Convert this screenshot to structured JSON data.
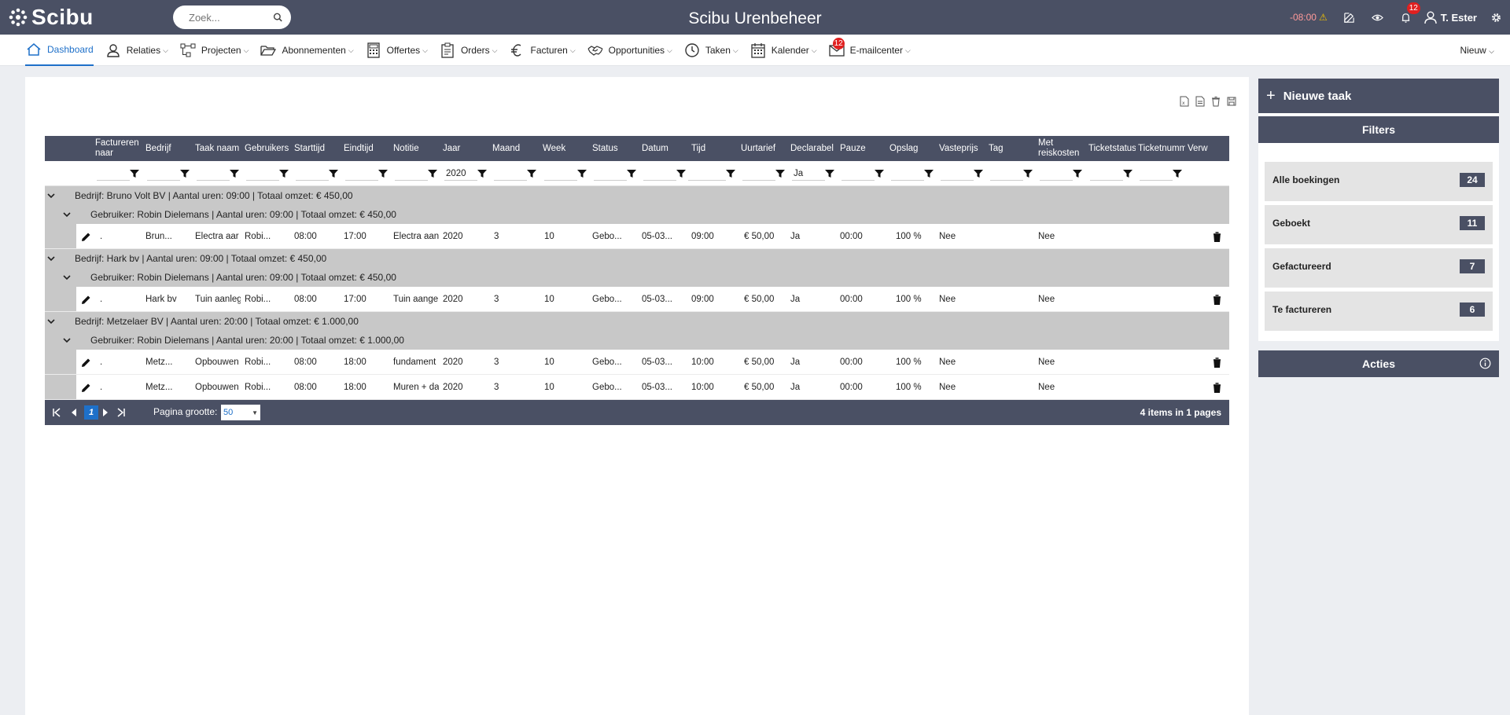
{
  "app": {
    "logo": "Scibu",
    "title": "Scibu Urenbeheer"
  },
  "search": {
    "placeholder": "Zoek..."
  },
  "topbar": {
    "timer": "-08:00",
    "notifications": "12",
    "user": "T. Ester"
  },
  "nav": {
    "items": [
      {
        "label": "Dashboard",
        "icon": "home-icon",
        "active": true
      },
      {
        "label": "Relaties",
        "icon": "person-icon"
      },
      {
        "label": "Projecten",
        "icon": "project-icon"
      },
      {
        "label": "Abonnementen",
        "icon": "folder-icon"
      },
      {
        "label": "Offertes",
        "icon": "calculator-icon"
      },
      {
        "label": "Orders",
        "icon": "clipboard-icon"
      },
      {
        "label": "Facturen",
        "icon": "euro-icon"
      },
      {
        "label": "Opportunities",
        "icon": "handshake-icon"
      },
      {
        "label": "Taken",
        "icon": "clock-icon"
      },
      {
        "label": "Kalender",
        "icon": "calendar-icon"
      },
      {
        "label": "E-mailcenter",
        "icon": "mail-icon",
        "badge": "12"
      }
    ],
    "new_label": "Nieuw"
  },
  "grid": {
    "columns": [
      "Factureren naar",
      "Bedrijf",
      "Taak naam",
      "Gebruikers",
      "Starttijd",
      "Eindtijd",
      "Notitie",
      "Jaar",
      "Maand",
      "Week",
      "Status",
      "Datum",
      "Tijd",
      "Uurtarief",
      "Declarabel",
      "Pauze",
      "Opslag",
      "Vasteprijs",
      "Tag",
      "Met reiskosten",
      "Ticketstatus",
      "Ticketnummer",
      "Verw"
    ],
    "filters": {
      "jaar": "2020",
      "declarabel": "Ja"
    },
    "groups": [
      {
        "company": "Bedrijf: Bruno Volt BV | Aantal uren: 09:00 | Totaal omzet: € 450,00",
        "user": "Gebruiker: Robin Dielemans | Aantal uren: 09:00 | Totaal omzet: € 450,00",
        "rows": [
          {
            "factureren": ".",
            "bedrijf": "Brun...",
            "taak": "Electra aar",
            "gebruiker": "Robi...",
            "start": "08:00",
            "eind": "17:00",
            "notitie": "Electra aan",
            "jaar": "2020",
            "maand": "3",
            "week": "10",
            "status": "Gebo...",
            "datum": "05-03...",
            "tijd": "09:00",
            "uurtarief": "€ 50,00",
            "declarabel": "Ja",
            "pauze": "00:00",
            "opslag": "100 %",
            "vasteprijs": "Nee",
            "reiskosten": "Nee"
          }
        ]
      },
      {
        "company": "Bedrijf: Hark bv | Aantal uren: 09:00 | Totaal omzet: € 450,00",
        "user": "Gebruiker: Robin Dielemans | Aantal uren: 09:00 | Totaal omzet: € 450,00",
        "rows": [
          {
            "factureren": ".",
            "bedrijf": "Hark bv",
            "taak": "Tuin aanleg",
            "gebruiker": "Robi...",
            "start": "08:00",
            "eind": "17:00",
            "notitie": "Tuin aange",
            "jaar": "2020",
            "maand": "3",
            "week": "10",
            "status": "Gebo...",
            "datum": "05-03...",
            "tijd": "09:00",
            "uurtarief": "€ 50,00",
            "declarabel": "Ja",
            "pauze": "00:00",
            "opslag": "100 %",
            "vasteprijs": "Nee",
            "reiskosten": "Nee"
          }
        ]
      },
      {
        "company": "Bedrijf: Metzelaer BV | Aantal uren: 20:00 | Totaal omzet: € 1.000,00",
        "user": "Gebruiker: Robin Dielemans | Aantal uren: 20:00 | Totaal omzet: € 1.000,00",
        "rows": [
          {
            "factureren": ".",
            "bedrijf": "Metz...",
            "taak": "Opbouwen",
            "gebruiker": "Robi...",
            "start": "08:00",
            "eind": "18:00",
            "notitie": "fundament",
            "jaar": "2020",
            "maand": "3",
            "week": "10",
            "status": "Gebo...",
            "datum": "05-03...",
            "tijd": "10:00",
            "uurtarief": "€ 50,00",
            "declarabel": "Ja",
            "pauze": "00:00",
            "opslag": "100 %",
            "vasteprijs": "Nee",
            "reiskosten": "Nee"
          },
          {
            "factureren": ".",
            "bedrijf": "Metz...",
            "taak": "Opbouwen",
            "gebruiker": "Robi...",
            "start": "08:00",
            "eind": "18:00",
            "notitie": "Muren + da",
            "jaar": "2020",
            "maand": "3",
            "week": "10",
            "status": "Gebo...",
            "datum": "05-03...",
            "tijd": "10:00",
            "uurtarief": "€ 50,00",
            "declarabel": "Ja",
            "pauze": "00:00",
            "opslag": "100 %",
            "vasteprijs": "Nee",
            "reiskosten": "Nee"
          }
        ]
      }
    ],
    "pager": {
      "current_page": "1",
      "page_size_label": "Pagina grootte:",
      "page_size": "50",
      "info": "4 items in 1 pages"
    }
  },
  "sidebar": {
    "new_task": "Nieuwe taak",
    "filters_title": "Filters",
    "filters": [
      {
        "label": "Alle boekingen",
        "count": "24"
      },
      {
        "label": "Geboekt",
        "count": "11"
      },
      {
        "label": "Gefactureerd",
        "count": "7"
      },
      {
        "label": "Te factureren",
        "count": "6"
      }
    ],
    "acties_title": "Acties"
  },
  "colors": {
    "header": "#4a5064",
    "accent": "#1e70c9",
    "group": "#c8c8c8",
    "badge": "#e02020"
  }
}
